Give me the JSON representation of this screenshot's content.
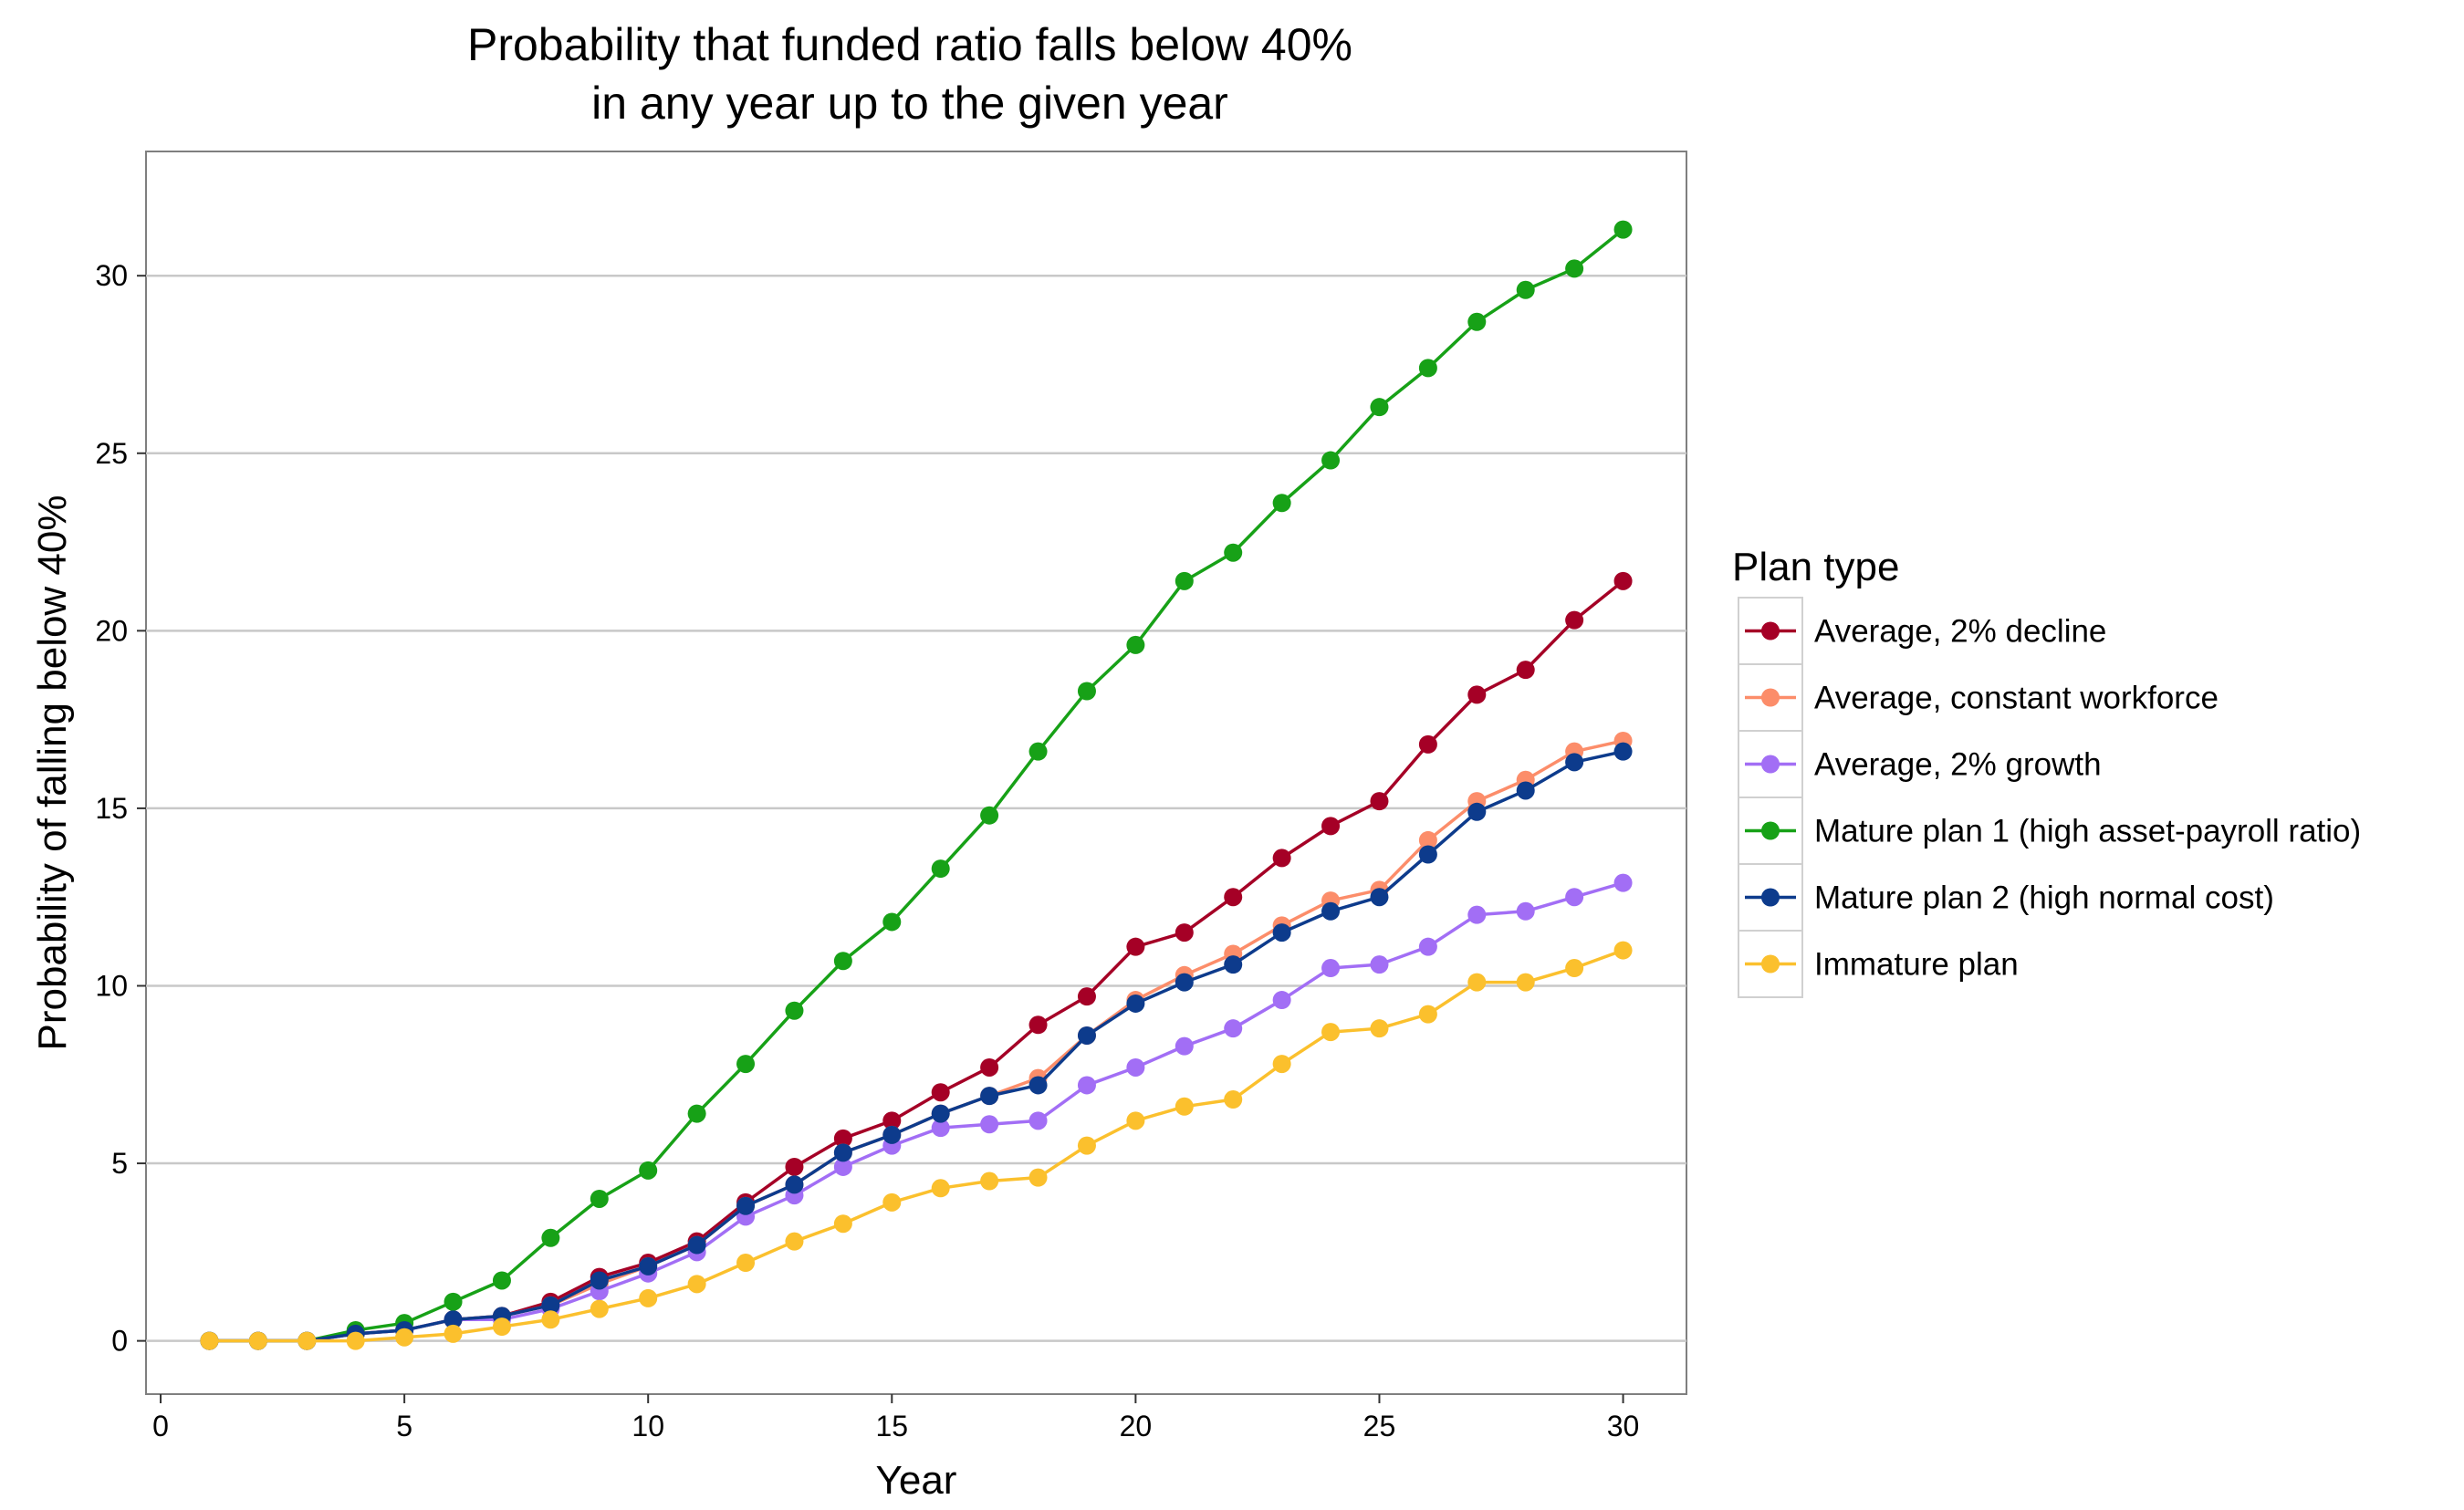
{
  "chart_data": {
    "type": "line",
    "title": [
      "Probability that funded ratio falls below 40%",
      "in any year up to the given year"
    ],
    "xlabel": "Year",
    "ylabel": "Probability of falling below 40%",
    "xlim": [
      -0.3,
      31.3
    ],
    "ylim": [
      -1.5,
      33.5
    ],
    "x_ticks": [
      0,
      5,
      10,
      15,
      20,
      25,
      30
    ],
    "y_ticks": [
      0,
      5,
      10,
      15,
      20,
      25,
      30
    ],
    "grid": "horizontal",
    "legend_title": "Plan type",
    "legend_position": "right",
    "x": [
      1,
      2,
      3,
      4,
      5,
      6,
      7,
      8,
      9,
      10,
      11,
      12,
      13,
      14,
      15,
      16,
      17,
      18,
      19,
      20,
      21,
      22,
      23,
      24,
      25,
      26,
      27,
      28,
      29,
      30
    ],
    "series": [
      {
        "name": "Average, 2% decline",
        "color": "#a50026",
        "values": [
          0,
          0,
          0,
          0.2,
          0.3,
          0.6,
          0.7,
          1.1,
          1.8,
          2.2,
          2.8,
          3.9,
          4.9,
          5.7,
          6.2,
          7.0,
          7.7,
          8.9,
          9.7,
          11.1,
          11.5,
          12.5,
          13.6,
          14.5,
          15.2,
          16.8,
          18.2,
          18.9,
          20.3,
          21.4
        ]
      },
      {
        "name": "Average, constant workforce",
        "color": "#fc8d6a",
        "values": [
          0,
          0,
          0,
          0.2,
          0.3,
          0.6,
          0.7,
          1.0,
          1.6,
          2.1,
          2.7,
          3.8,
          4.4,
          5.3,
          5.8,
          6.4,
          6.9,
          7.4,
          8.6,
          9.6,
          10.3,
          10.9,
          11.7,
          12.4,
          12.7,
          14.1,
          15.2,
          15.8,
          16.6,
          16.9
        ]
      },
      {
        "name": "Average, 2% growth",
        "color": "#a26ef5",
        "values": [
          0,
          0,
          0,
          0.2,
          0.3,
          0.6,
          0.6,
          0.9,
          1.4,
          1.9,
          2.5,
          3.5,
          4.1,
          4.9,
          5.5,
          6.0,
          6.1,
          6.2,
          7.2,
          7.7,
          8.3,
          8.8,
          9.6,
          10.5,
          10.6,
          11.1,
          12.0,
          12.1,
          12.5,
          12.9
        ]
      },
      {
        "name": "Mature plan 1 (high asset-payroll ratio)",
        "color": "#17a117",
        "values": [
          0,
          0,
          0,
          0.3,
          0.5,
          1.1,
          1.7,
          2.9,
          4.0,
          4.8,
          6.4,
          7.8,
          9.3,
          10.7,
          11.8,
          13.3,
          14.8,
          16.6,
          18.3,
          19.6,
          21.4,
          22.2,
          23.6,
          24.8,
          26.3,
          27.4,
          28.7,
          29.6,
          30.2,
          31.3
        ]
      },
      {
        "name": "Mature plan 2 (high normal cost)",
        "color": "#0d3b8c",
        "values": [
          0,
          0,
          0,
          0.2,
          0.3,
          0.6,
          0.7,
          1.0,
          1.7,
          2.1,
          2.7,
          3.8,
          4.4,
          5.3,
          5.8,
          6.4,
          6.9,
          7.2,
          8.6,
          9.5,
          10.1,
          10.6,
          11.5,
          12.1,
          12.5,
          13.7,
          14.9,
          15.5,
          16.3,
          16.6
        ]
      },
      {
        "name": "Immature plan",
        "color": "#fbc02d",
        "values": [
          0,
          0,
          0,
          0,
          0.1,
          0.2,
          0.4,
          0.6,
          0.9,
          1.2,
          1.6,
          2.2,
          2.8,
          3.3,
          3.9,
          4.3,
          4.5,
          4.6,
          5.5,
          6.2,
          6.6,
          6.8,
          7.8,
          8.7,
          8.8,
          9.2,
          10.1,
          10.1,
          10.5,
          11.0
        ]
      }
    ]
  }
}
